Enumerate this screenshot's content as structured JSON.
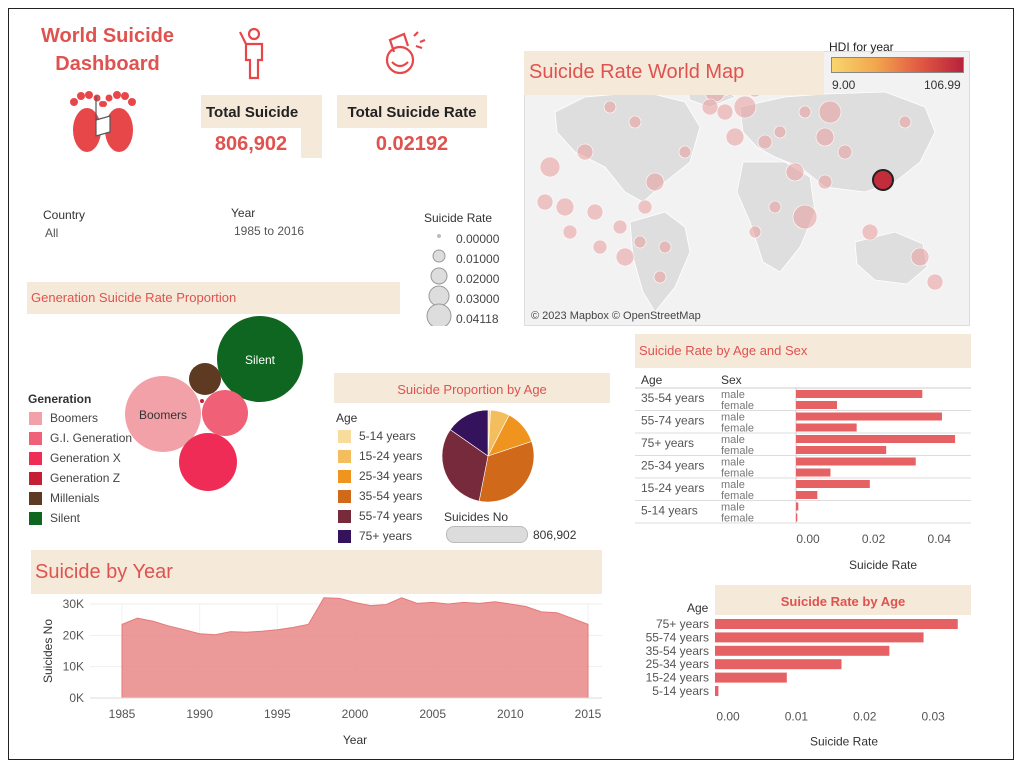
{
  "title": "World Suicide Dashboard",
  "kpis": {
    "total_suicide_label": "Total Suicide",
    "total_suicide_value": "806,902",
    "total_rate_label": "Total Suicide Rate",
    "total_rate_value": "0.02192"
  },
  "filters": {
    "country_label": "Country",
    "country_value": "All",
    "year_label": "Year",
    "year_value": "1985 to 2016"
  },
  "size_legend": {
    "title": "Suicide Rate",
    "items": [
      "0.00000",
      "0.01000",
      "0.02000",
      "0.03000",
      "0.04118"
    ]
  },
  "map": {
    "title": "Suicide Rate World Map",
    "hdi_title": "HDI for year",
    "hdi_min": "9.00",
    "hdi_max": "106.99",
    "credit": "© 2023 Mapbox © OpenStreetMap"
  },
  "colors": {
    "accent": "#e0524f",
    "header_bg": "#f5e9d9",
    "bar": "#e56163",
    "area": "#e98787"
  },
  "chart_data": [
    {
      "id": "generation",
      "type": "bubble",
      "title": "Generation Suicide Rate Proportion",
      "legend_title": "Generation",
      "legend": [
        {
          "name": "Boomers",
          "color": "#f2a1a8"
        },
        {
          "name": "G.I. Generation",
          "color": "#f06178"
        },
        {
          "name": "Generation X",
          "color": "#ee2c55"
        },
        {
          "name": "Generation Z",
          "color": "#c41f35"
        },
        {
          "name": "Millenials",
          "color": "#5e3a22"
        },
        {
          "name": "Silent",
          "color": "#0f6620"
        }
      ],
      "bubble_labels": {
        "Boomers": "Boomers",
        "Silent": "Silent"
      }
    },
    {
      "id": "age_pie",
      "type": "pie",
      "title": "Suicide Proportion by Age",
      "legend_title": "Age",
      "categories": [
        "5-14 years",
        "15-24 years",
        "25-34 years",
        "35-54 years",
        "55-74 years",
        "75+ years"
      ],
      "values": [
        0.9,
        6.7,
        12.3,
        33.2,
        31.6,
        15.3
      ],
      "colors": [
        "#f8dc9c",
        "#f4be5e",
        "#ef951f",
        "#d0691a",
        "#772a3b",
        "#34125c"
      ],
      "suicides_no_label": "Suicides No",
      "suicides_no_value": "806,902"
    },
    {
      "id": "by_year",
      "type": "area",
      "title": "Suicide by Year",
      "xlabel": "Year",
      "ylabel": "Suicides No",
      "x": [
        1985,
        1986,
        1987,
        1988,
        1989,
        1990,
        1991,
        1992,
        1993,
        1994,
        1995,
        1996,
        1997,
        1998,
        1999,
        2000,
        2001,
        2002,
        2003,
        2004,
        2005,
        2006,
        2007,
        2008,
        2009,
        2010,
        2011,
        2012,
        2013,
        2014,
        2015
      ],
      "y": [
        23500,
        25500,
        24500,
        23000,
        21800,
        20500,
        20200,
        21200,
        21000,
        21300,
        21800,
        22500,
        23500,
        32000,
        31800,
        30500,
        29500,
        29800,
        32000,
        30200,
        30500,
        30000,
        30500,
        30200,
        30700,
        30000,
        29200,
        27500,
        27200,
        25400,
        23500
      ],
      "ylim": [
        0,
        30000
      ],
      "yticks": [
        "0K",
        "10K",
        "20K",
        "30K"
      ],
      "xticks": [
        "1985",
        "1990",
        "1995",
        "2000",
        "2005",
        "2010",
        "2015"
      ]
    },
    {
      "id": "age_sex",
      "type": "bar",
      "title": "Suicide Rate by Age and Sex",
      "col_age": "Age",
      "col_sex": "Sex",
      "xlabel": "Suicide Rate",
      "xlim": [
        0,
        0.05
      ],
      "xticks": [
        "0.00",
        "0.02",
        "0.04"
      ],
      "rows": [
        {
          "age": "35-54 years",
          "male": 0.0385,
          "female": 0.0125
        },
        {
          "age": "55-74 years",
          "male": 0.0445,
          "female": 0.0185
        },
        {
          "age": "75+ years",
          "male": 0.0485,
          "female": 0.0275
        },
        {
          "age": "25-34 years",
          "male": 0.0365,
          "female": 0.0105
        },
        {
          "age": "15-24 years",
          "male": 0.0225,
          "female": 0.0065
        },
        {
          "age": "5-14 years",
          "male": 0.0007,
          "female": 0.0004
        }
      ],
      "male_label": "male",
      "female_label": "female"
    },
    {
      "id": "rate_by_age",
      "type": "bar",
      "title": "Suicide Rate by Age",
      "ylabel": "Age",
      "xlabel": "Suicide Rate",
      "xlim": [
        0,
        0.037
      ],
      "xticks": [
        "0.00",
        "0.01",
        "0.02",
        "0.03"
      ],
      "categories": [
        "75+ years",
        "55-74 years",
        "35-54 years",
        "25-34 years",
        "15-24 years",
        "5-14 years"
      ],
      "values": [
        0.0355,
        0.0305,
        0.0255,
        0.0185,
        0.0105,
        0.0005
      ]
    }
  ]
}
